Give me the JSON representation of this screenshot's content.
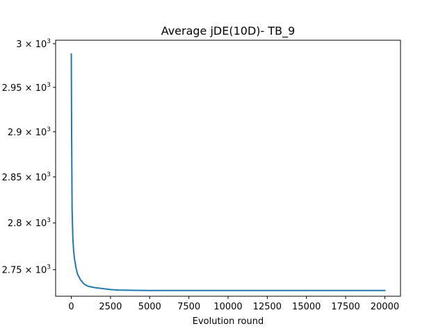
{
  "chart_data": {
    "type": "line",
    "title": "Average jDE(10D)- TB_9",
    "xlabel": "Evolution round",
    "ylabel": "",
    "xlim": [
      -1000,
      21000
    ],
    "ylim": [
      2722,
      3004
    ],
    "y_scale": "log",
    "grid": false,
    "x_ticks": [
      0,
      2500,
      5000,
      7500,
      10000,
      12500,
      15000,
      17500,
      20000
    ],
    "x_tick_labels": [
      "0",
      "2500",
      "5000",
      "7500",
      "10000",
      "12500",
      "15000",
      "17500",
      "20000"
    ],
    "y_ticks": [
      {
        "value": 2750,
        "mantissa": "2.75"
      },
      {
        "value": 2800,
        "mantissa": "2.8"
      },
      {
        "value": 2850,
        "mantissa": "2.85"
      },
      {
        "value": 2900,
        "mantissa": "2.9"
      },
      {
        "value": 2950,
        "mantissa": "2.95"
      },
      {
        "value": 3000,
        "mantissa": "3"
      }
    ],
    "y_tick_suffix": "× 10",
    "y_tick_exponent": "3",
    "series": [
      {
        "color": "#1f77b4",
        "x": [
          0,
          20,
          50,
          100,
          150,
          200,
          300,
          400,
          600,
          800,
          1000,
          1200,
          1500,
          2000,
          2500,
          3000,
          4000,
          5000,
          6000,
          8000,
          10000,
          12500,
          15000,
          17500,
          20000
        ],
        "y": [
          2988,
          2900,
          2815,
          2783,
          2770,
          2762,
          2752,
          2745,
          2739,
          2735,
          2733,
          2732,
          2731,
          2730,
          2729,
          2728.5,
          2728.2,
          2728,
          2728,
          2728,
          2728,
          2728,
          2728,
          2728,
          2728
        ]
      }
    ]
  }
}
